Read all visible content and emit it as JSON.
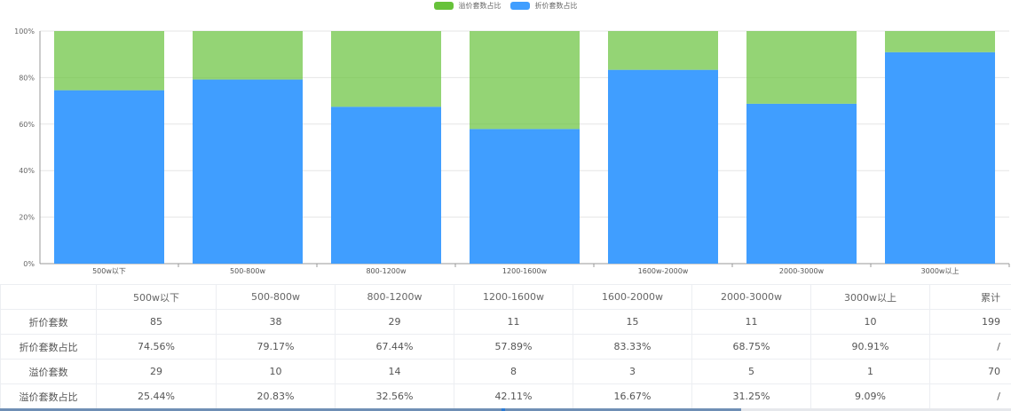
{
  "chart_data": {
    "type": "bar",
    "stacked": true,
    "categories": [
      "500w以下",
      "500-800w",
      "800-1200w",
      "1200-1600w",
      "1600w-2000w",
      "2000-3000w",
      "3000w以上"
    ],
    "series": [
      {
        "name": "折价套数占比",
        "color": "#409eff",
        "values": [
          74.56,
          79.17,
          67.44,
          57.89,
          83.33,
          68.75,
          90.91
        ]
      },
      {
        "name": "溢价套数占比",
        "color": "#67c23a",
        "values": [
          25.44,
          20.83,
          32.56,
          42.11,
          16.67,
          31.25,
          9.09
        ]
      }
    ],
    "legend_order": [
      "溢价套数占比",
      "折价套数占比"
    ],
    "legend_position": "top-center",
    "y_ticks": [
      "0%",
      "20%",
      "40%",
      "60%",
      "80%",
      "100%"
    ],
    "ylim": [
      0,
      100
    ],
    "xlabel": "",
    "ylabel": "",
    "grid": true
  },
  "table": {
    "headers": [
      "",
      "500w以下",
      "500-800w",
      "800-1200w",
      "1200-1600w",
      "1600-2000w",
      "2000-3000w",
      "3000w以上",
      "累计"
    ],
    "rows": [
      {
        "label": "折价套数",
        "cells": [
          "85",
          "38",
          "29",
          "11",
          "15",
          "11",
          "10"
        ],
        "total": "199"
      },
      {
        "label": "折价套数占比",
        "cells": [
          "74.56%",
          "79.17%",
          "67.44%",
          "57.89%",
          "83.33%",
          "68.75%",
          "90.91%"
        ],
        "total": "/"
      },
      {
        "label": "溢价套数",
        "cells": [
          "29",
          "10",
          "14",
          "8",
          "3",
          "5",
          "1"
        ],
        "total": "70"
      },
      {
        "label": "溢价套数占比",
        "cells": [
          "25.44%",
          "20.83%",
          "32.56%",
          "42.11%",
          "16.67%",
          "31.25%",
          "9.09%"
        ],
        "total": "/"
      }
    ]
  }
}
